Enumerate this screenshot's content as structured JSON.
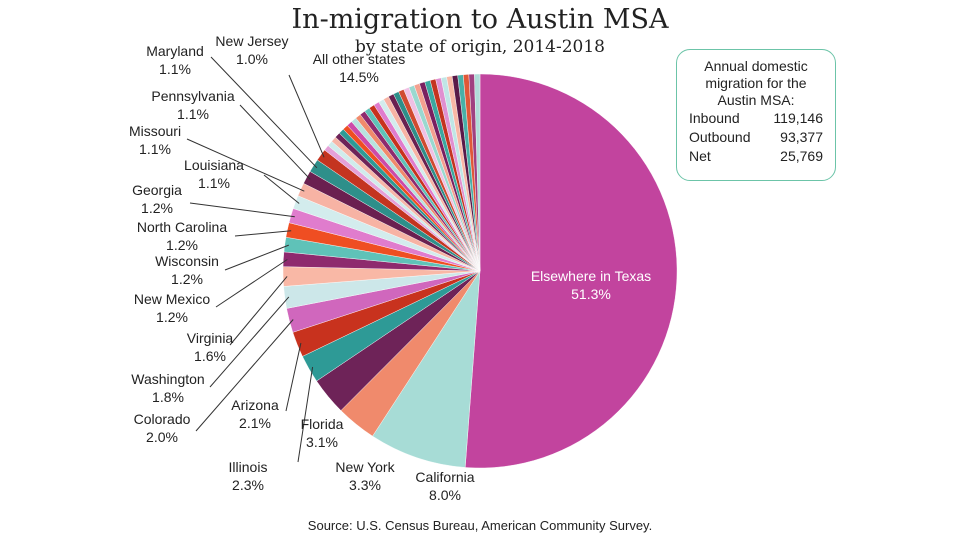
{
  "chart_data": {
    "type": "pie",
    "title": "In-migration to Austin MSA",
    "subtitle": "by state of origin, 2014-2018",
    "unit": "%",
    "slices": [
      {
        "name": "Elsewhere in Texas",
        "value": 51.3,
        "label": "Elsewhere in Texas",
        "value_label": "51.3%",
        "color": "#c2449e"
      },
      {
        "name": "California",
        "value": 8.0,
        "label": "California",
        "value_label": "8.0%",
        "color": "#a7dcd6"
      },
      {
        "name": "New York",
        "value": 3.3,
        "label": "New York",
        "value_label": "3.3%",
        "color": "#f08a6c"
      },
      {
        "name": "Florida",
        "value": 3.1,
        "label": "Florida",
        "value_label": "3.1%",
        "color": "#6e2358"
      },
      {
        "name": "Illinois",
        "value": 2.3,
        "label": "Illinois",
        "value_label": "2.3%",
        "color": "#2e9a96"
      },
      {
        "name": "Arizona",
        "value": 2.1,
        "label": "Arizona",
        "value_label": "2.1%",
        "color": "#c8321e"
      },
      {
        "name": "Colorado",
        "value": 2.0,
        "label": "Colorado",
        "value_label": "2.0%",
        "color": "#d067bd"
      },
      {
        "name": "Washington",
        "value": 1.8,
        "label": "Washington",
        "value_label": "1.8%",
        "color": "#cce7e9"
      },
      {
        "name": "Virginia",
        "value": 1.6,
        "label": "Virginia",
        "value_label": "1.6%",
        "color": "#f9b8a6"
      },
      {
        "name": "New Mexico",
        "value": 1.2,
        "label": "New Mexico",
        "value_label": "1.2%",
        "color": "#8e2a6e"
      },
      {
        "name": "Wisconsin",
        "value": 1.2,
        "label": "Wisconsin",
        "value_label": "1.2%",
        "color": "#5fc2b8"
      },
      {
        "name": "North Carolina",
        "value": 1.2,
        "label": "North Carolina",
        "value_label": "1.2%",
        "color": "#ef4e22"
      },
      {
        "name": "Georgia",
        "value": 1.2,
        "label": "Georgia",
        "value_label": "1.2%",
        "color": "#e07ccd"
      },
      {
        "name": "Louisiana",
        "value": 1.1,
        "label": "Louisiana",
        "value_label": "1.1%",
        "color": "#d3eced"
      },
      {
        "name": "Missouri",
        "value": 1.1,
        "label": "Missouri",
        "value_label": "1.1%",
        "color": "#f7b3a4"
      },
      {
        "name": "Pennsylvania",
        "value": 1.1,
        "label": "Pennsylvania",
        "value_label": "1.1%",
        "color": "#6a2050"
      },
      {
        "name": "Maryland",
        "value": 1.1,
        "label": "Maryland",
        "value_label": "1.1%",
        "color": "#2e8f8a"
      },
      {
        "name": "New Jersey",
        "value": 1.0,
        "label": "New Jersey",
        "value_label": "1.0%",
        "color": "#c43420"
      },
      {
        "name": "All other states",
        "value": 14.5,
        "label": "All other states",
        "value_label": "14.5%",
        "color": "#e5a0d8",
        "stripe_colors": [
          "#e5a0d8",
          "#d0ecec",
          "#f6b6a8",
          "#6e2358",
          "#2e9a96",
          "#ef4e22",
          "#cc4aa8",
          "#b8e2de",
          "#f08a6c",
          "#8e2a6e",
          "#5fc2b8",
          "#c8321e",
          "#e07ccd",
          "#d3eced",
          "#f7b3a4",
          "#6a2050",
          "#2e8f8a",
          "#d04a30",
          "#f0c0e4",
          "#9ad8d0",
          "#f4a090",
          "#7a2060",
          "#3aa8a0",
          "#c43420",
          "#e090d0",
          "#c0e6e6",
          "#f9b8a6",
          "#5a1a48",
          "#48b0a8",
          "#e05838",
          "#a04080",
          "#b0dcd8"
        ]
      }
    ]
  },
  "summary": {
    "heading": [
      "Annual domestic",
      "migration for the",
      "Austin MSA:"
    ],
    "rows": [
      {
        "label": "Inbound",
        "value": "119,146"
      },
      {
        "label": "Outbound",
        "value": "93,377"
      },
      {
        "label": "Net",
        "value": "25,769"
      }
    ]
  },
  "source": "Source:  U.S. Census Bureau, American Community Survey."
}
